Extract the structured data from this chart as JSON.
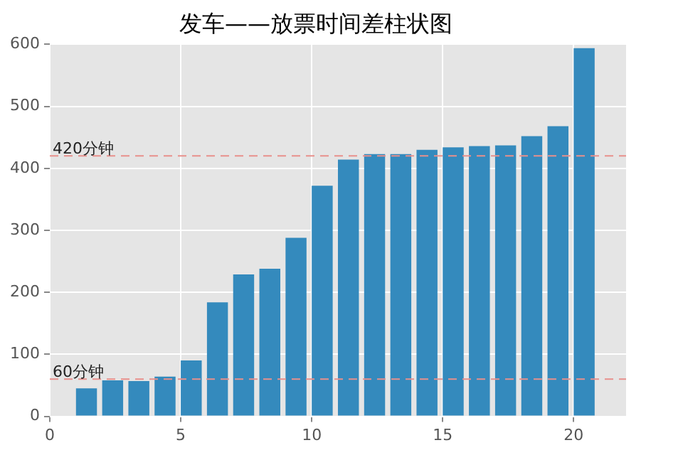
{
  "chart_data": {
    "type": "bar",
    "title": "发车——放票时间差柱状图",
    "x": [
      1.4,
      2.4,
      3.4,
      4.4,
      5.4,
      6.4,
      7.4,
      8.4,
      9.4,
      10.4,
      11.4,
      12.4,
      13.4,
      14.4,
      15.4,
      16.4,
      17.4,
      18.4,
      19.4,
      20.4
    ],
    "values": [
      45,
      58,
      57,
      64,
      90,
      184,
      229,
      238,
      288,
      372,
      414,
      423,
      423,
      430,
      434,
      436,
      437,
      452,
      468,
      594
    ],
    "color": "#348abd",
    "xlim": [
      0,
      22
    ],
    "xticks": [
      0,
      5,
      10,
      15,
      20
    ],
    "ylim": [
      0,
      600
    ],
    "yticks": [
      0,
      100,
      200,
      300,
      400,
      500,
      600
    ],
    "grid": true,
    "ref_lines": [
      {
        "axis": "y",
        "value": 420,
        "label": "420分钟",
        "color": "#e8908c",
        "line_style": "dashed"
      },
      {
        "axis": "y",
        "value": 60,
        "label": "60分钟",
        "color": "#e8908c",
        "line_style": "dashed"
      }
    ]
  }
}
